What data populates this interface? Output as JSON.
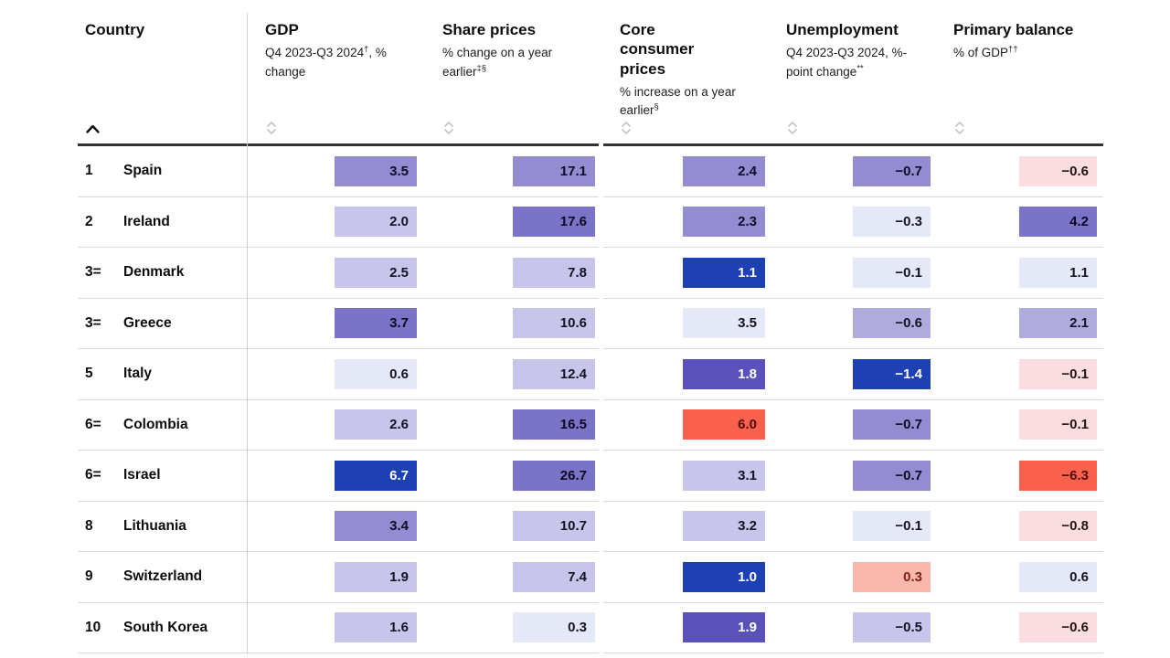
{
  "table": {
    "columns": [
      {
        "key": "country",
        "label": "Country",
        "sub_before": "",
        "sup": "",
        "sub_after": "",
        "sorted": "ascending"
      },
      {
        "key": "gdp",
        "label": "GDP",
        "sub_before": "Q4 2023-Q3 2024",
        "sup": "†",
        "sub_after": ", % change"
      },
      {
        "key": "share",
        "label": "Share prices",
        "sub_before": "% change on a year earlier",
        "sup": "‡§",
        "sub_after": ""
      },
      {
        "key": "core",
        "label": "Core consumer prices",
        "sub_before": "% increase on a year earlier",
        "sup": "§",
        "sub_after": ""
      },
      {
        "key": "unemp",
        "label": "Unemployment",
        "sub_before": "Q4 2023-Q3 2024, %-point change",
        "sup": "**",
        "sub_after": ""
      },
      {
        "key": "primary",
        "label": "Primary balance",
        "sub_before": "% of GDP",
        "sup": "††",
        "sub_after": ""
      }
    ],
    "rows": [
      {
        "rank": "1",
        "country": "Spain",
        "cells": [
          {
            "v": "3.5",
            "tone": "p4"
          },
          {
            "v": "17.1",
            "tone": "p4"
          },
          {
            "v": "2.4",
            "tone": "p4"
          },
          {
            "v": "−0.7",
            "tone": "p4"
          },
          {
            "v": "−0.6",
            "tone": "r1"
          }
        ]
      },
      {
        "rank": "2",
        "country": "Ireland",
        "cells": [
          {
            "v": "2.0",
            "tone": "p2"
          },
          {
            "v": "17.6",
            "tone": "p5"
          },
          {
            "v": "2.3",
            "tone": "p4"
          },
          {
            "v": "−0.3",
            "tone": "p1"
          },
          {
            "v": "4.2",
            "tone": "p5"
          }
        ]
      },
      {
        "rank": "3=",
        "country": "Denmark",
        "cells": [
          {
            "v": "2.5",
            "tone": "p2"
          },
          {
            "v": "7.8",
            "tone": "p2"
          },
          {
            "v": "1.1",
            "tone": "p7"
          },
          {
            "v": "−0.1",
            "tone": "p1"
          },
          {
            "v": "1.1",
            "tone": "p1"
          }
        ]
      },
      {
        "rank": "3=",
        "country": "Greece",
        "cells": [
          {
            "v": "3.7",
            "tone": "p5"
          },
          {
            "v": "10.6",
            "tone": "p2"
          },
          {
            "v": "3.5",
            "tone": "p1"
          },
          {
            "v": "−0.6",
            "tone": "p3"
          },
          {
            "v": "2.1",
            "tone": "p3"
          }
        ]
      },
      {
        "rank": "5",
        "country": "Italy",
        "cells": [
          {
            "v": "0.6",
            "tone": "p1"
          },
          {
            "v": "12.4",
            "tone": "p2"
          },
          {
            "v": "1.8",
            "tone": "p6"
          },
          {
            "v": "−1.4",
            "tone": "p7"
          },
          {
            "v": "−0.1",
            "tone": "r1"
          }
        ]
      },
      {
        "rank": "6=",
        "country": "Colombia",
        "cells": [
          {
            "v": "2.6",
            "tone": "p2"
          },
          {
            "v": "16.5",
            "tone": "p5"
          },
          {
            "v": "6.0",
            "tone": "r3"
          },
          {
            "v": "−0.7",
            "tone": "p4"
          },
          {
            "v": "−0.1",
            "tone": "r1"
          }
        ]
      },
      {
        "rank": "6=",
        "country": "Israel",
        "cells": [
          {
            "v": "6.7",
            "tone": "p7"
          },
          {
            "v": "26.7",
            "tone": "p5"
          },
          {
            "v": "3.1",
            "tone": "p2"
          },
          {
            "v": "−0.7",
            "tone": "p4"
          },
          {
            "v": "−6.3",
            "tone": "r3"
          }
        ]
      },
      {
        "rank": "8",
        "country": "Lithuania",
        "cells": [
          {
            "v": "3.4",
            "tone": "p4"
          },
          {
            "v": "10.7",
            "tone": "p2"
          },
          {
            "v": "3.2",
            "tone": "p2"
          },
          {
            "v": "−0.1",
            "tone": "p1"
          },
          {
            "v": "−0.8",
            "tone": "r1"
          }
        ]
      },
      {
        "rank": "9",
        "country": "Switzerland",
        "cells": [
          {
            "v": "1.9",
            "tone": "p2"
          },
          {
            "v": "7.4",
            "tone": "p2"
          },
          {
            "v": "1.0",
            "tone": "p7"
          },
          {
            "v": "0.3",
            "tone": "r2"
          },
          {
            "v": "0.6",
            "tone": "p1"
          }
        ]
      },
      {
        "rank": "10",
        "country": "South Korea",
        "cells": [
          {
            "v": "1.6",
            "tone": "p2"
          },
          {
            "v": "0.3",
            "tone": "p1"
          },
          {
            "v": "1.9",
            "tone": "p6"
          },
          {
            "v": "−0.5",
            "tone": "p2"
          },
          {
            "v": "−0.6",
            "tone": "r1"
          }
        ]
      }
    ]
  },
  "tones": {
    "p1": {
      "bg": "#e4e8f7",
      "fg": "#131325"
    },
    "p2": {
      "bg": "#c8c5ea",
      "fg": "#131325"
    },
    "p3": {
      "bg": "#b0abdd",
      "fg": "#131325"
    },
    "p4": {
      "bg": "#938cd1",
      "fg": "#0d0d28"
    },
    "p5": {
      "bg": "#7b73c7",
      "fg": "#0a0a23"
    },
    "p6": {
      "bg": "#5a52ba",
      "fg": "#ffffff"
    },
    "p7": {
      "bg": "#1e40b5",
      "fg": "#ffffff"
    },
    "r1": {
      "bg": "#fbdde1",
      "fg": "#231312"
    },
    "r2": {
      "bg": "#f9b7ab",
      "fg": "#7c2315"
    },
    "r3": {
      "bg": "#f9614c",
      "fg": "#4f0f08"
    }
  },
  "colors": {
    "header_rule": "#333333",
    "row_rule": "#dbdbdb",
    "divider": "#d2d2d2",
    "sort_icon": "#c4c4c4",
    "active_sort_icon": "#0d0d0d"
  },
  "chart_data": {
    "type": "table",
    "categories": [
      "Spain",
      "Ireland",
      "Denmark",
      "Greece",
      "Italy",
      "Colombia",
      "Israel",
      "Lithuania",
      "Switzerland",
      "South Korea"
    ],
    "ranks": [
      "1",
      "2",
      "3=",
      "3=",
      "5",
      "6=",
      "6=",
      "8",
      "9",
      "10"
    ],
    "series": [
      {
        "name": "GDP, Q4 2023-Q3 2024, % change",
        "values": [
          3.5,
          2.0,
          2.5,
          3.7,
          0.6,
          2.6,
          6.7,
          3.4,
          1.9,
          1.6
        ]
      },
      {
        "name": "Share prices, % change on a year earlier",
        "values": [
          17.1,
          17.6,
          7.8,
          10.6,
          12.4,
          16.5,
          26.7,
          10.7,
          7.4,
          0.3
        ]
      },
      {
        "name": "Core consumer prices, % increase on a year earlier",
        "values": [
          2.4,
          2.3,
          1.1,
          3.5,
          1.8,
          6.0,
          3.1,
          3.2,
          1.0,
          1.9
        ]
      },
      {
        "name": "Unemployment, Q4 2023-Q3 2024, %-point change",
        "values": [
          -0.7,
          -0.3,
          -0.1,
          -0.6,
          -1.4,
          -0.7,
          -0.7,
          -0.1,
          0.3,
          -0.5
        ]
      },
      {
        "name": "Primary balance, % of GDP",
        "values": [
          -0.6,
          4.2,
          1.1,
          2.1,
          -0.1,
          -0.1,
          -6.3,
          -0.8,
          0.6,
          -0.6
        ]
      }
    ],
    "legend_position": "none",
    "grid": "row-rules-only"
  }
}
